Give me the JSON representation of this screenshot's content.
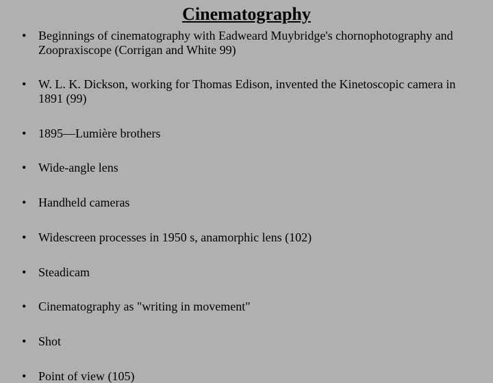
{
  "background_color": "#b0b0b0",
  "text_color": "#000000",
  "font_family": "Times New Roman",
  "title": {
    "text": "Cinematography",
    "font_size": 26,
    "font_weight": "bold",
    "underline": true,
    "align": "center"
  },
  "bullets": {
    "font_size": 18,
    "items": [
      "Beginnings of cinematography with Eadweard Muybridge's chornophotography and Zoopraxiscope (Corrigan and White 99)",
      "W. L. K. Dickson, working for Thomas Edison, invented the Kinetoscopic camera in 1891 (99)",
      "1895—Lumière brothers",
      "Wide-angle lens",
      "Handheld cameras",
      "Widescreen processes in 1950 s, anamorphic lens (102)",
      "Steadicam",
      "Cinematography as \"writing in movement\"",
      "Shot",
      "Point of view (105)"
    ]
  }
}
